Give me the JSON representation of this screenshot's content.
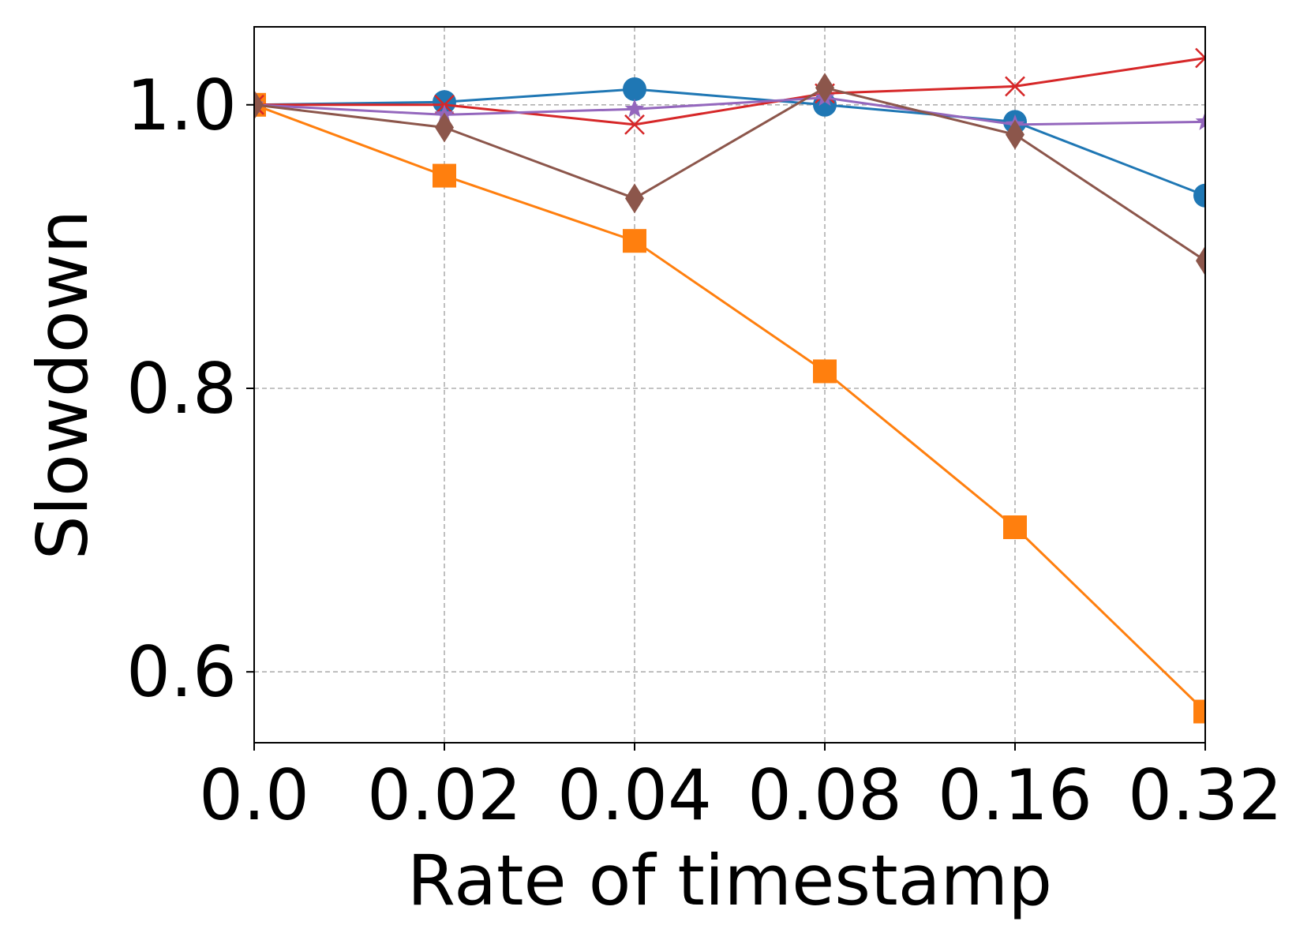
{
  "chart_data": {
    "type": "line",
    "xlabel": "Rate of timestamp",
    "ylabel": "Slowdown",
    "x_scale": "categorical",
    "categories": [
      "0.0",
      "0.02",
      "0.04",
      "0.08",
      "0.16",
      "0.32"
    ],
    "yticks": [
      "0.6",
      "0.8",
      "1.0"
    ],
    "ylim": [
      0.55,
      1.055
    ],
    "grid": true,
    "legend": "none",
    "series": [
      {
        "color": "#1f77b4",
        "marker": "circle",
        "values": [
          1.0,
          1.002,
          1.011,
          1.0,
          0.988,
          0.936
        ]
      },
      {
        "color": "#ff7f0e",
        "marker": "square",
        "values": [
          1.0,
          0.95,
          0.904,
          0.812,
          0.702,
          0.572
        ]
      },
      {
        "color": "#d62728",
        "marker": "x",
        "values": [
          1.0,
          1.0,
          0.986,
          1.008,
          1.013,
          1.033
        ]
      },
      {
        "color": "#9467bd",
        "marker": "star",
        "values": [
          1.0,
          0.993,
          0.997,
          1.005,
          0.986,
          0.988
        ]
      },
      {
        "color": "#8c564b",
        "marker": "diamond",
        "values": [
          1.0,
          0.984,
          0.934,
          1.012,
          0.979,
          0.89
        ]
      }
    ]
  }
}
